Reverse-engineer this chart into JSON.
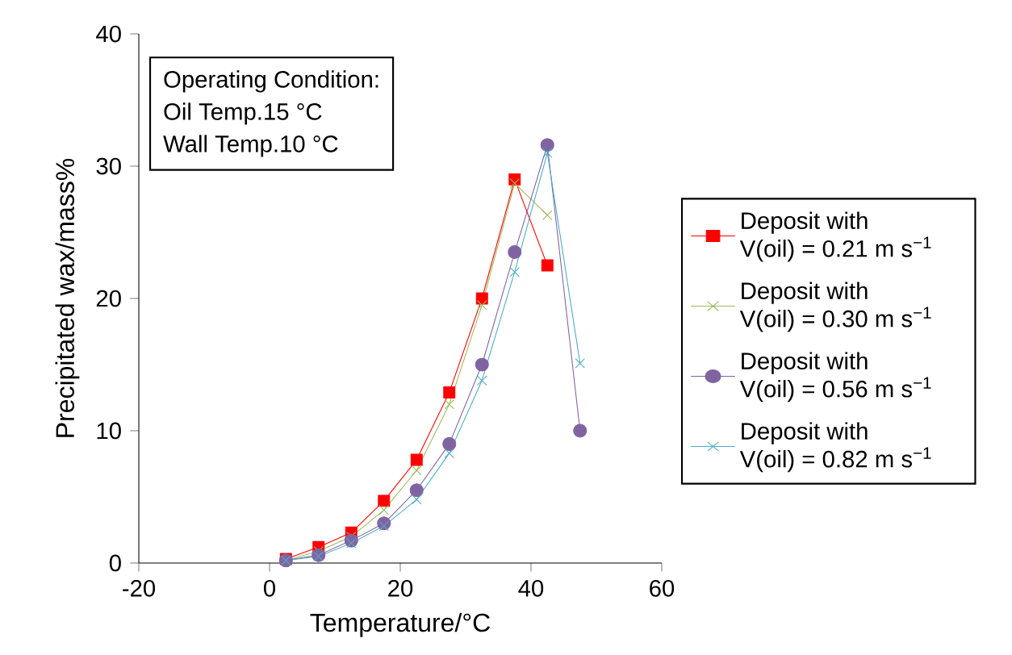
{
  "chart_data": {
    "type": "line",
    "xlabel": "Temperature/°C",
    "ylabel": "Precipitated wax/mass%",
    "x": [
      2.5,
      7.5,
      12.5,
      17.5,
      22.5,
      27.5,
      32.5,
      37.5,
      42.5,
      47.5
    ],
    "xlim": [
      -20,
      60
    ],
    "xticks": [
      -20,
      0,
      20,
      40,
      60
    ],
    "ylim": [
      0,
      40
    ],
    "yticks": [
      0,
      10,
      20,
      30,
      40
    ],
    "legend": "right",
    "grid": false,
    "series": [
      {
        "name": "Deposit with V(oil) = 0.21 m s$^{−1}$",
        "color": "#ff0000",
        "marker": "square",
        "values": [
          0.3,
          1.2,
          2.3,
          4.7,
          7.8,
          12.9,
          20.0,
          29.0,
          22.5,
          null
        ]
      },
      {
        "name": "Deposit with V(oil) = 0.30 m s$^{−1}$",
        "color": "#9bbb59",
        "marker": "cross",
        "values": [
          0.2,
          0.9,
          2.0,
          4.0,
          7.0,
          12.0,
          19.5,
          28.7,
          26.3,
          null
        ]
      },
      {
        "name": "Deposit with V(oil) = 0.56 m s$^{−1}$",
        "color": "#8064a2",
        "marker": "circle",
        "values": [
          0.2,
          0.6,
          1.7,
          3.0,
          5.5,
          9.0,
          15.0,
          23.5,
          31.6,
          10.0
        ]
      },
      {
        "name": "Deposit with V(oil) = 0.82 m s$^{−1}$",
        "color": "#4bacc6",
        "marker": "cross",
        "values": [
          0.2,
          0.5,
          1.5,
          2.8,
          4.8,
          8.3,
          13.8,
          22.0,
          31.0,
          15.1
        ]
      }
    ],
    "annotations": [
      "Operating Condition:",
      "Oil Temp.15 °C",
      "Wall Temp.10 °C"
    ]
  }
}
